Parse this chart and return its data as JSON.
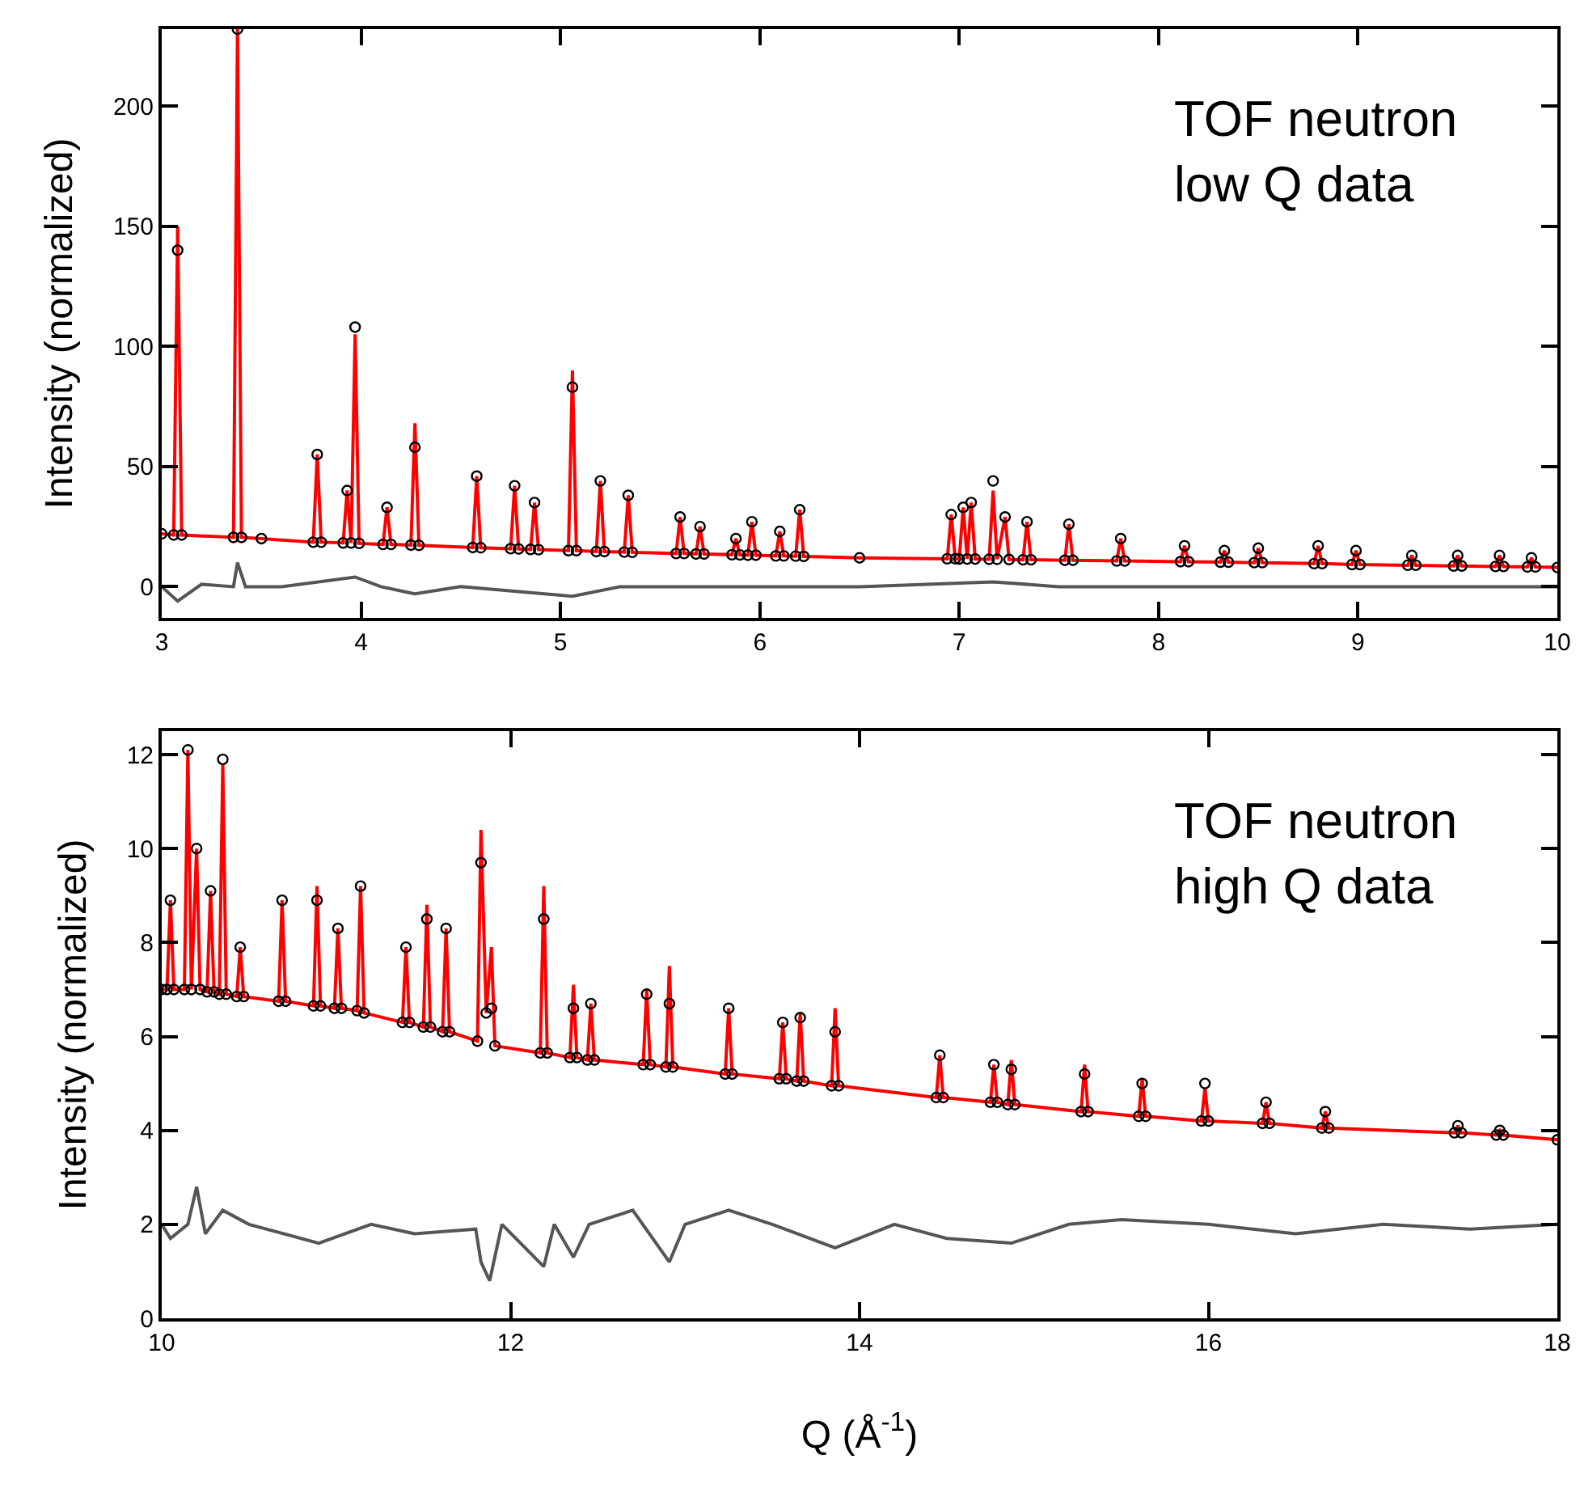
{
  "chart_data": [
    {
      "type": "scatter",
      "ylabel": "Intensity (normalized)",
      "annotations": [
        "TOF neutron\nlow Q data"
      ],
      "xlim": [
        3,
        10
      ],
      "xticks": [
        3,
        4,
        5,
        6,
        7,
        8,
        9,
        10
      ],
      "ylim": [
        -13,
        232
      ],
      "yticks": [
        0,
        50,
        100,
        150,
        200
      ],
      "series": [
        {
          "type": "line",
          "color": "#ff0000",
          "line_style": "solid",
          "x": [
            3.0,
            3.06,
            3.08,
            3.1,
            3.36,
            3.38,
            3.4,
            3.5,
            3.76,
            3.78,
            3.8,
            3.91,
            3.93,
            3.95,
            3.97,
            3.99,
            4.11,
            4.13,
            4.15,
            4.25,
            4.27,
            4.29,
            4.56,
            4.58,
            4.6,
            4.75,
            4.77,
            4.79,
            4.85,
            4.87,
            4.89,
            5.04,
            5.06,
            5.08,
            5.18,
            5.2,
            5.22,
            5.32,
            5.34,
            5.36,
            5.58,
            5.6,
            5.62,
            5.68,
            5.7,
            5.72,
            5.86,
            5.88,
            5.9,
            5.94,
            5.96,
            5.98,
            6.08,
            6.1,
            6.12,
            6.18,
            6.2,
            6.22,
            6.5,
            6.94,
            6.96,
            6.98,
            7.0,
            7.02,
            7.04,
            7.06,
            7.08,
            7.15,
            7.17,
            7.19,
            7.23,
            7.25,
            7.32,
            7.34,
            7.36,
            7.53,
            7.55,
            7.57,
            7.79,
            7.81,
            7.83,
            8.11,
            8.13,
            8.15,
            8.31,
            8.33,
            8.35,
            8.48,
            8.5,
            8.52,
            8.78,
            8.8,
            8.82,
            8.97,
            8.99,
            9.01,
            9.25,
            9.27,
            9.29,
            9.48,
            9.5,
            9.52,
            9.69,
            9.71,
            9.73,
            9.85,
            9.87,
            9.89,
            10.0
          ],
          "values": [
            22,
            21.5,
            150,
            21.5,
            20.5,
            232,
            20.5,
            20,
            18.5,
            55,
            18.5,
            18.2,
            40,
            18.2,
            105,
            18,
            17.6,
            33,
            17.6,
            17.3,
            68,
            17.2,
            16.3,
            46,
            16.2,
            15.8,
            42,
            15.7,
            15.5,
            35,
            15.4,
            15,
            90,
            15,
            14.6,
            44,
            14.6,
            14.4,
            38,
            14.3,
            13.8,
            29,
            13.8,
            13.6,
            25,
            13.6,
            13.3,
            20,
            13.2,
            13.1,
            27,
            13.1,
            12.8,
            23,
            12.8,
            12.7,
            32,
            12.6,
            12,
            11.6,
            30,
            11.6,
            11.5,
            33,
            11.5,
            35,
            11.5,
            11.4,
            40,
            11.4,
            29,
            11.3,
            11.2,
            27,
            11.2,
            11,
            26,
            11,
            10.7,
            20,
            10.7,
            10.4,
            17,
            10.4,
            10.2,
            15,
            10.2,
            10,
            16,
            10,
            9.6,
            17,
            9.6,
            9.2,
            15,
            9.2,
            8.9,
            13,
            8.9,
            8.6,
            13,
            8.6,
            8.4,
            13,
            8.4,
            8.2,
            12,
            8.2,
            8
          ]
        },
        {
          "color": "#000000",
          "marker": "circle",
          "x": [
            3.0,
            3.06,
            3.08,
            3.1,
            3.36,
            3.38,
            3.4,
            3.5,
            3.76,
            3.78,
            3.8,
            3.91,
            3.93,
            3.95,
            3.97,
            3.99,
            4.11,
            4.13,
            4.15,
            4.25,
            4.27,
            4.29,
            4.56,
            4.58,
            4.6,
            4.75,
            4.77,
            4.79,
            4.85,
            4.87,
            4.89,
            5.04,
            5.06,
            5.08,
            5.18,
            5.2,
            5.22,
            5.32,
            5.34,
            5.36,
            5.58,
            5.6,
            5.62,
            5.68,
            5.7,
            5.72,
            5.86,
            5.88,
            5.9,
            5.94,
            5.96,
            5.98,
            6.08,
            6.1,
            6.12,
            6.18,
            6.2,
            6.22,
            6.5,
            6.94,
            6.96,
            6.98,
            7.0,
            7.02,
            7.04,
            7.06,
            7.08,
            7.15,
            7.17,
            7.19,
            7.23,
            7.25,
            7.32,
            7.34,
            7.36,
            7.53,
            7.55,
            7.57,
            7.79,
            7.81,
            7.83,
            8.11,
            8.13,
            8.15,
            8.31,
            8.33,
            8.35,
            8.48,
            8.5,
            8.52,
            8.78,
            8.8,
            8.82,
            8.97,
            8.99,
            9.01,
            9.25,
            9.27,
            9.29,
            9.48,
            9.5,
            9.52,
            9.69,
            9.71,
            9.73,
            9.85,
            9.87,
            9.89,
            10.0
          ],
          "values": [
            22,
            21.5,
            140,
            21.5,
            20.5,
            232,
            20.5,
            20,
            18.5,
            55,
            18.5,
            18.2,
            40,
            18.2,
            108,
            18,
            17.6,
            33,
            17.6,
            17.3,
            58,
            17.2,
            16.3,
            46,
            16.2,
            15.8,
            42,
            15.7,
            15.5,
            35,
            15.4,
            15,
            83,
            15,
            14.6,
            44,
            14.6,
            14.4,
            38,
            14.3,
            13.8,
            29,
            13.8,
            13.6,
            25,
            13.6,
            13.3,
            20,
            13.2,
            13.1,
            27,
            13.1,
            12.8,
            23,
            12.8,
            12.7,
            32,
            12.6,
            12,
            11.6,
            30,
            11.6,
            11.5,
            33,
            11.5,
            35,
            11.5,
            11.4,
            44,
            11.4,
            29,
            11.3,
            11.2,
            27,
            11.2,
            11,
            26,
            11,
            10.7,
            20,
            10.7,
            10.4,
            17,
            10.4,
            10.2,
            15,
            10.2,
            10,
            16,
            10,
            9.6,
            17,
            9.6,
            9.2,
            15,
            9.2,
            8.9,
            13,
            8.9,
            8.6,
            13,
            8.6,
            8.4,
            13,
            8.4,
            8.2,
            12,
            8.2,
            8
          ]
        },
        {
          "type": "line",
          "color": "#555555",
          "line_style": "solid",
          "x": [
            3.0,
            3.08,
            3.2,
            3.36,
            3.38,
            3.42,
            3.6,
            3.97,
            4.1,
            4.27,
            4.5,
            5.06,
            5.3,
            5.5,
            6.0,
            6.5,
            7.17,
            7.5,
            8.0,
            8.5,
            9.0,
            9.5,
            10.0
          ],
          "values": [
            0,
            -6,
            1,
            0,
            10,
            0,
            0,
            4,
            0,
            -3,
            0,
            -4,
            0,
            0,
            0,
            0,
            2,
            0,
            0,
            0,
            0,
            0,
            0
          ]
        }
      ]
    },
    {
      "type": "scatter",
      "ylabel": "Intensity (normalized)",
      "xlabel": "Q (Å$^{-1}$)",
      "annotations": [
        "TOF neutron\nhigh Q data"
      ],
      "xlim": [
        10,
        18
      ],
      "xticks": [
        10,
        12,
        14,
        16,
        18
      ],
      "ylim": [
        0,
        12.5
      ],
      "yticks": [
        0,
        2,
        4,
        6,
        8,
        10,
        12
      ],
      "series": [
        {
          "type": "line",
          "color": "#ff0000",
          "line_style": "solid",
          "x": [
            10.0,
            10.03,
            10.05,
            10.07,
            10.13,
            10.15,
            10.17,
            10.2,
            10.22,
            10.26,
            10.28,
            10.3,
            10.33,
            10.35,
            10.37,
            10.43,
            10.45,
            10.47,
            10.67,
            10.69,
            10.71,
            10.87,
            10.89,
            10.91,
            10.99,
            11.01,
            11.03,
            11.12,
            11.14,
            11.16,
            11.38,
            11.4,
            11.42,
            11.5,
            11.52,
            11.54,
            11.61,
            11.63,
            11.65,
            11.81,
            11.83,
            11.86,
            11.89,
            11.91,
            12.17,
            12.19,
            12.21,
            12.34,
            12.36,
            12.38,
            12.44,
            12.46,
            12.48,
            12.76,
            12.78,
            12.8,
            12.89,
            12.91,
            12.93,
            13.23,
            13.25,
            13.27,
            13.54,
            13.56,
            13.58,
            13.64,
            13.66,
            13.68,
            13.84,
            13.86,
            13.88,
            14.44,
            14.46,
            14.48,
            14.75,
            14.77,
            14.79,
            14.85,
            14.87,
            14.89,
            15.27,
            15.29,
            15.31,
            15.6,
            15.62,
            15.64,
            15.96,
            15.98,
            16.0,
            16.31,
            16.33,
            16.35,
            16.65,
            16.67,
            16.69,
            17.41,
            17.43,
            17.45,
            17.65,
            17.67,
            17.69,
            18.0
          ],
          "values": [
            7.0,
            7.0,
            8.9,
            7.0,
            7.0,
            12.1,
            7.0,
            10.0,
            7.0,
            6.95,
            9.1,
            6.95,
            6.9,
            11.8,
            6.9,
            6.85,
            7.9,
            6.85,
            6.75,
            8.9,
            6.75,
            6.65,
            9.2,
            6.65,
            6.6,
            8.3,
            6.6,
            6.55,
            9.2,
            6.5,
            6.3,
            7.9,
            6.3,
            6.2,
            8.8,
            6.2,
            6.1,
            8.3,
            6.1,
            5.9,
            10.4,
            6.5,
            7.9,
            5.8,
            5.65,
            9.2,
            5.65,
            5.55,
            7.1,
            5.55,
            5.5,
            6.7,
            5.5,
            5.4,
            7.0,
            5.4,
            5.35,
            7.5,
            5.35,
            5.2,
            6.6,
            5.2,
            5.1,
            6.3,
            5.1,
            5.05,
            6.5,
            5.05,
            4.95,
            6.6,
            4.95,
            4.7,
            5.6,
            4.7,
            4.6,
            5.4,
            4.6,
            4.55,
            5.5,
            4.55,
            4.4,
            5.4,
            4.4,
            4.3,
            5.1,
            4.3,
            4.2,
            4.9,
            4.2,
            4.15,
            4.6,
            4.15,
            4.05,
            4.4,
            4.05,
            3.95,
            4.1,
            3.95,
            3.9,
            4.0,
            3.9,
            3.8
          ]
        },
        {
          "color": "#000000",
          "marker": "circle",
          "x": [
            10.0,
            10.03,
            10.05,
            10.07,
            10.13,
            10.15,
            10.17,
            10.2,
            10.22,
            10.26,
            10.28,
            10.3,
            10.33,
            10.35,
            10.37,
            10.43,
            10.45,
            10.47,
            10.67,
            10.69,
            10.71,
            10.87,
            10.89,
            10.91,
            10.99,
            11.01,
            11.03,
            11.12,
            11.14,
            11.16,
            11.38,
            11.4,
            11.42,
            11.5,
            11.52,
            11.54,
            11.61,
            11.63,
            11.65,
            11.81,
            11.83,
            11.86,
            11.89,
            11.91,
            12.17,
            12.19,
            12.21,
            12.34,
            12.36,
            12.38,
            12.44,
            12.46,
            12.48,
            12.76,
            12.78,
            12.8,
            12.89,
            12.91,
            12.93,
            13.23,
            13.25,
            13.27,
            13.54,
            13.56,
            13.58,
            13.64,
            13.66,
            13.68,
            13.84,
            13.86,
            13.88,
            14.44,
            14.46,
            14.48,
            14.75,
            14.77,
            14.79,
            14.85,
            14.87,
            14.89,
            15.27,
            15.29,
            15.31,
            15.6,
            15.62,
            15.64,
            15.96,
            15.98,
            16.0,
            16.31,
            16.33,
            16.35,
            16.65,
            16.67,
            16.69,
            17.41,
            17.43,
            17.45,
            17.65,
            17.67,
            17.69,
            18.0
          ],
          "values": [
            7.0,
            7.0,
            8.9,
            7.0,
            7.0,
            12.1,
            7.0,
            10.0,
            7.0,
            6.95,
            9.1,
            6.95,
            6.9,
            11.9,
            6.9,
            6.85,
            7.9,
            6.85,
            6.75,
            8.9,
            6.75,
            6.65,
            8.9,
            6.65,
            6.6,
            8.3,
            6.6,
            6.55,
            9.2,
            6.5,
            6.3,
            7.9,
            6.3,
            6.2,
            8.5,
            6.2,
            6.1,
            8.3,
            6.1,
            5.9,
            9.7,
            6.5,
            6.6,
            5.8,
            5.65,
            8.5,
            5.65,
            5.55,
            6.6,
            5.55,
            5.5,
            6.7,
            5.5,
            5.4,
            6.9,
            5.4,
            5.35,
            6.7,
            5.35,
            5.2,
            6.6,
            5.2,
            5.1,
            6.3,
            5.1,
            5.05,
            6.4,
            5.05,
            4.95,
            6.1,
            4.95,
            4.7,
            5.6,
            4.7,
            4.6,
            5.4,
            4.6,
            4.55,
            5.3,
            4.55,
            4.4,
            5.2,
            4.4,
            4.3,
            5.0,
            4.3,
            4.2,
            5.0,
            4.2,
            4.15,
            4.6,
            4.15,
            4.05,
            4.4,
            4.05,
            3.95,
            4.1,
            3.95,
            3.9,
            4.0,
            3.9,
            3.8
          ]
        },
        {
          "type": "line",
          "color": "#555555",
          "line_style": "solid",
          "x": [
            10.0,
            10.05,
            10.15,
            10.2,
            10.25,
            10.35,
            10.5,
            10.9,
            11.2,
            11.45,
            11.8,
            11.83,
            11.88,
            11.95,
            12.19,
            12.25,
            12.36,
            12.45,
            12.7,
            12.91,
            13.0,
            13.25,
            13.5,
            13.86,
            14.2,
            14.5,
            14.87,
            15.2,
            15.5,
            16.0,
            16.5,
            17.0,
            17.5,
            18.0
          ],
          "values": [
            2,
            1.7,
            2.0,
            2.8,
            1.8,
            2.3,
            2.0,
            1.6,
            2.0,
            1.8,
            1.9,
            1.2,
            0.8,
            2.0,
            1.1,
            2.0,
            1.3,
            2.0,
            2.3,
            1.2,
            2.0,
            2.3,
            2.0,
            1.5,
            2.0,
            1.7,
            1.6,
            2.0,
            2.1,
            2.0,
            1.8,
            2.0,
            1.9,
            2.0
          ]
        }
      ]
    }
  ]
}
